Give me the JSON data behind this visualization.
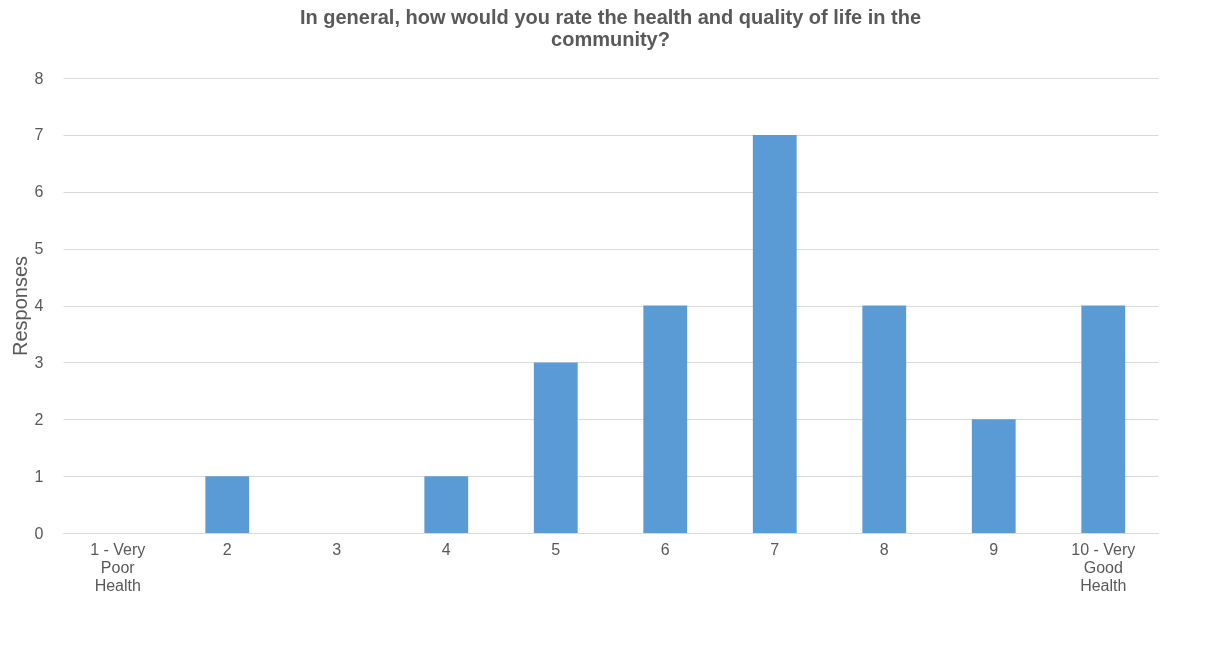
{
  "chart_data": {
    "type": "bar",
    "title": "In general, how would you rate the health and quality of life in the community?",
    "ylabel": "Responses",
    "categories": [
      "1 - Very Poor Health",
      "2",
      "3",
      "4",
      "5",
      "6",
      "7",
      "8",
      "9",
      "10 - Very Good Health"
    ],
    "values": [
      0,
      1,
      0,
      1,
      3,
      4,
      7,
      4,
      2,
      4
    ],
    "color": "#5b9bd5",
    "ylim": [
      0,
      8
    ],
    "yticks": [
      0,
      1,
      2,
      3,
      4,
      5,
      6,
      7,
      8
    ],
    "grid": "y"
  }
}
